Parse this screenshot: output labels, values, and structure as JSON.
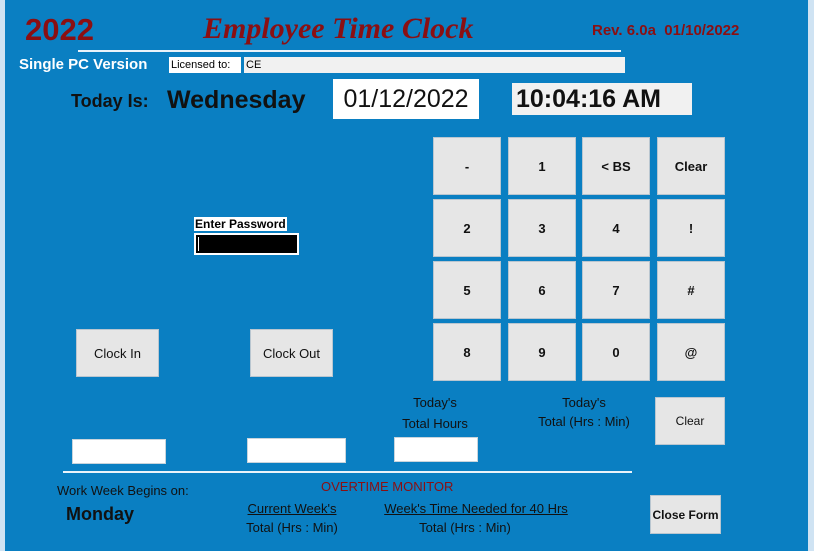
{
  "header": {
    "year": "2022",
    "title": "Employee Time Clock",
    "revision": "Rev. 6.0a  01/10/2022",
    "version": "Single PC Version",
    "licensed_label": "Licensed to:",
    "licensed_value": "CE"
  },
  "today": {
    "label": "Today Is:",
    "weekday": "Wednesday",
    "date": "01/12/2022",
    "time": "10:04:16 AM"
  },
  "password": {
    "label": "Enter Password",
    "value": ""
  },
  "keypad": [
    "-",
    "1",
    "< BS",
    "Clear",
    "2",
    "3",
    "4",
    "!",
    "5",
    "6",
    "7",
    "#",
    "8",
    "9",
    "0",
    "@"
  ],
  "buttons": {
    "clock_in": "Clock In",
    "clock_out": "Clock Out",
    "clear": "Clear",
    "close_form": "Close Form"
  },
  "totals": {
    "today_hours_1": "Today's",
    "today_hours_2": "Total Hours",
    "today_total_1": "Today's",
    "today_total_2": "Total (Hrs : Min)"
  },
  "footer": {
    "week_begins_label": "Work Week Begins on:",
    "week_begins_value": "Monday",
    "overtime_title": "OVERTIME MONITOR",
    "current_week_1": "Current Week's",
    "current_week_2": "Total (Hrs : Min)",
    "needed_1": "Week's Time Needed for 40 Hrs",
    "needed_2": "Total (Hrs : Min)"
  },
  "colors": {
    "background": "#0a7fc2",
    "title_red": "#8b0f12"
  }
}
